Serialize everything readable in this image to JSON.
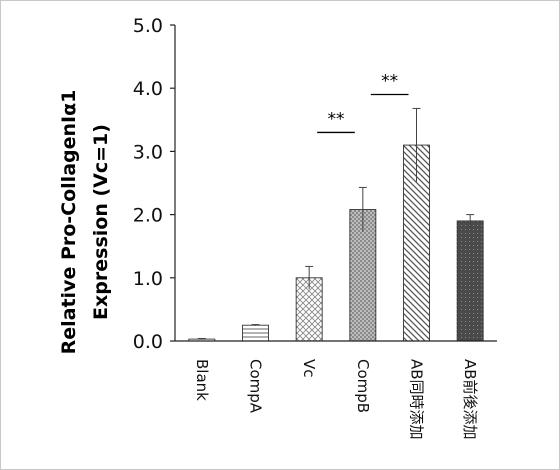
{
  "chart_data": {
    "type": "bar",
    "title": "",
    "xlabel": "",
    "ylabel_lines": [
      "Relative Pro-CollagenIα1",
      "Expression (Vc=1)"
    ],
    "ylim": [
      0,
      5
    ],
    "yticks": [
      "0.0",
      "1.0",
      "2.0",
      "3.0",
      "4.0",
      "5.0"
    ],
    "ytick_values": [
      0,
      1,
      2,
      3,
      4,
      5
    ],
    "grid": false,
    "categories": [
      "Blank",
      "CompA",
      "Vc",
      "CompB",
      "AB同時添加",
      "AB前後添加"
    ],
    "values": [
      0.03,
      0.25,
      1.0,
      2.08,
      3.1,
      1.9
    ],
    "errors": [
      0.01,
      0.01,
      0.18,
      0.35,
      0.58,
      0.1
    ],
    "patterns": [
      "horizontal-lines",
      "horizontal-lines",
      "crosshatch",
      "dots",
      "diagonal-lines",
      "dark-dots"
    ],
    "significance": [
      {
        "from": 2,
        "to": 3,
        "label": "**",
        "y": 3.3
      },
      {
        "from": 3,
        "to": 4,
        "label": "**",
        "y": 3.9
      }
    ]
  }
}
